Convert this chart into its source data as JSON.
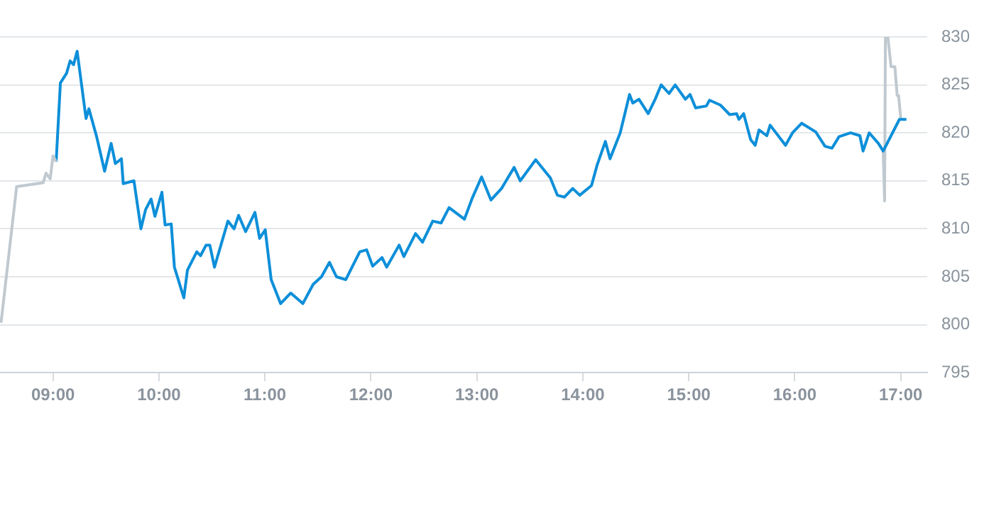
{
  "chart_data": {
    "type": "line",
    "xlim": [
      8.5,
      17.25
    ],
    "ylim": [
      795,
      830
    ],
    "xticks": [
      {
        "value": 9,
        "label": "09:00"
      },
      {
        "value": 10,
        "label": "10:00"
      },
      {
        "value": 11,
        "label": "11:00"
      },
      {
        "value": 12,
        "label": "12:00"
      },
      {
        "value": 13,
        "label": "13:00"
      },
      {
        "value": 14,
        "label": "14:00"
      },
      {
        "value": 15,
        "label": "15:00"
      },
      {
        "value": 16,
        "label": "16:00"
      },
      {
        "value": 17,
        "label": "17:00"
      }
    ],
    "yticks": [
      795,
      800,
      805,
      810,
      815,
      820,
      825,
      830
    ],
    "grid": "y",
    "legend": false,
    "marker": "none",
    "line_style": "solid",
    "series": [
      {
        "color": "#c0c9cf",
        "x": [
          8.51,
          8.657,
          8.908,
          8.934,
          8.974,
          9.0,
          9.03
        ],
        "values": [
          800.2,
          814.4,
          814.8,
          815.8,
          815.2,
          817.6,
          817.0
        ]
      },
      {
        "color": "#0d8fd9",
        "x": [
          9.03,
          9.07,
          9.128,
          9.162,
          9.194,
          9.228,
          9.312,
          9.339,
          9.412,
          9.487,
          9.549,
          9.589,
          9.646,
          9.663,
          9.764,
          9.83,
          9.874,
          9.926,
          9.962,
          10.028,
          10.058,
          10.116,
          10.146,
          10.235,
          10.269,
          10.357,
          10.393,
          10.445,
          10.48,
          10.524,
          10.651,
          10.709,
          10.752,
          10.818,
          10.906,
          10.95,
          11.003,
          11.059,
          11.148,
          11.244,
          11.358,
          11.455,
          11.534,
          11.609,
          11.675,
          11.763,
          11.895,
          11.96,
          12.017,
          12.105,
          12.149,
          12.267,
          12.311,
          12.422,
          12.487,
          12.584,
          12.663,
          12.738,
          12.883,
          12.957,
          13.045,
          13.133,
          13.233,
          13.352,
          13.41,
          13.555,
          13.694,
          13.76,
          13.826,
          13.905,
          13.971,
          14.082,
          14.134,
          14.213,
          14.257,
          14.353,
          14.441,
          14.472,
          14.53,
          14.617,
          14.683,
          14.74,
          14.814,
          14.872,
          14.968,
          15.012,
          15.065,
          15.166,
          15.196,
          15.298,
          15.386,
          15.452,
          15.473,
          15.518,
          15.584,
          15.627,
          15.663,
          15.737,
          15.768,
          15.913,
          15.979,
          16.066,
          16.198,
          16.286,
          16.352,
          16.418,
          16.527,
          16.615,
          16.645,
          16.703,
          16.79,
          16.835,
          16.988,
          17.054
        ],
        "values": [
          817.0,
          825.2,
          826.2,
          827.5,
          827.1,
          828.5,
          821.5,
          822.5,
          819.6,
          816.0,
          818.9,
          816.8,
          817.3,
          814.7,
          815.0,
          810.0,
          812.0,
          813.1,
          811.3,
          813.8,
          810.4,
          810.5,
          806.0,
          802.8,
          805.7,
          807.6,
          807.2,
          808.3,
          808.3,
          806.0,
          810.8,
          810.0,
          811.4,
          809.7,
          811.7,
          809.0,
          809.9,
          804.7,
          802.2,
          803.3,
          802.2,
          804.2,
          805.0,
          806.5,
          805.0,
          804.7,
          807.6,
          807.8,
          806.1,
          807.0,
          806.0,
          808.3,
          807.1,
          809.5,
          808.6,
          810.8,
          810.6,
          812.2,
          811.0,
          813.2,
          815.4,
          813.0,
          814.2,
          816.4,
          815.0,
          817.2,
          815.3,
          813.5,
          813.3,
          814.2,
          813.5,
          814.5,
          816.6,
          819.1,
          817.3,
          820.0,
          824.0,
          823.1,
          823.5,
          822.0,
          823.5,
          825.0,
          824.1,
          825.0,
          823.5,
          824.0,
          822.6,
          822.8,
          823.4,
          822.9,
          821.9,
          822.0,
          821.4,
          822.0,
          819.3,
          818.7,
          820.3,
          819.7,
          820.8,
          818.7,
          820.0,
          821.0,
          820.1,
          818.6,
          818.4,
          819.6,
          820.0,
          819.7,
          818.1,
          820.0,
          818.9,
          818.1,
          821.4,
          821.4
        ]
      },
      {
        "color": "#c0c9cf",
        "x": [
          16.835,
          16.848,
          16.856,
          16.879,
          16.909,
          16.945,
          16.967,
          16.98,
          17.001
        ],
        "values": [
          818.1,
          812.9,
          830.0,
          830.0,
          826.9,
          826.9,
          823.9,
          823.9,
          821.5
        ]
      }
    ]
  }
}
